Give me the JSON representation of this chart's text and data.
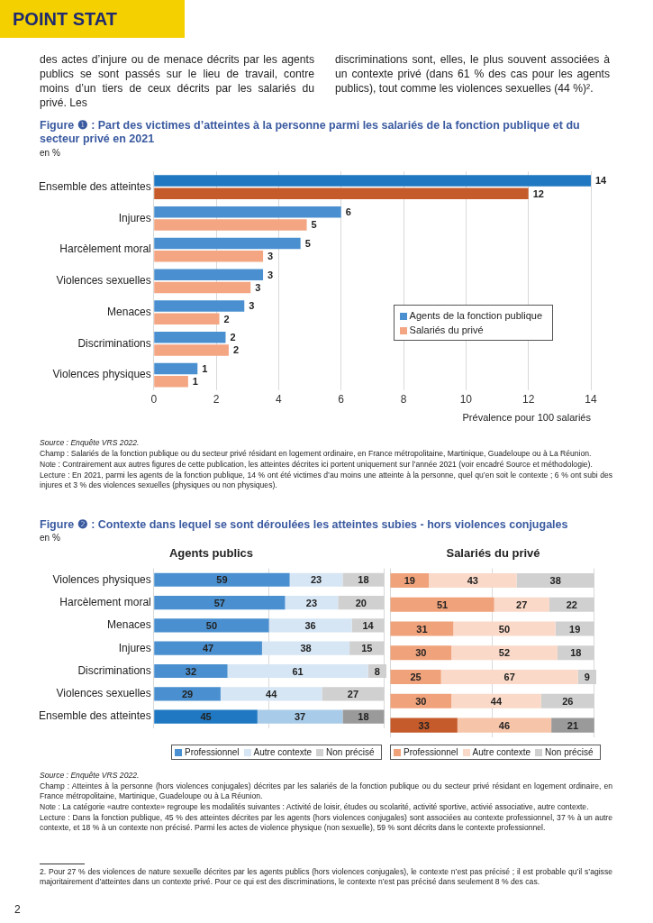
{
  "chart_data": [
    {
      "type": "bar",
      "orientation": "horizontal",
      "title": "Figure ❶ : Part des victimes d’atteintes à la personne parmi les salariés de la fonction publique et du secteur privé en 2021",
      "subtitle": "en %",
      "xlabel": "Prévalence pour 100 salariés",
      "categories": [
        "Ensemble des atteintes",
        "Injures",
        "Harcèlement moral",
        "Violences sexuelles",
        "Menaces",
        "Discriminations",
        "Violences physiques"
      ],
      "series": [
        {
          "name": "Agents de la fonction publique",
          "color": "#4a90d0",
          "colors": [
            "#1f78c1",
            "#4a90d0",
            "#4a90d0",
            "#4a90d0",
            "#4a90d0",
            "#4a90d0",
            "#4a90d0"
          ],
          "values": [
            14.0,
            6.0,
            4.7,
            3.5,
            2.9,
            2.3,
            1.4
          ],
          "value_labels": [
            "14",
            "6",
            "5",
            "3",
            "3",
            "2",
            "1"
          ]
        },
        {
          "name": "Salariés du privé",
          "color": "#f4a582",
          "colors": [
            "#c55a2a",
            "#f4a582",
            "#f4a582",
            "#f4a582",
            "#f4a582",
            "#f4a582",
            "#f4a582"
          ],
          "values": [
            12.0,
            4.9,
            3.5,
            3.1,
            2.1,
            2.4,
            1.1
          ],
          "value_labels": [
            "12",
            "5",
            "3",
            "3",
            "2",
            "2",
            "1"
          ]
        }
      ],
      "xlim": [
        0,
        14
      ],
      "xticks": [
        0,
        2,
        4,
        6,
        8,
        10,
        12,
        14
      ],
      "grid": "x",
      "legend": "bottom right",
      "annotations": [
        "POINT STAT",
        "des actes d’injure ou de menace décrits par les agents publics se sont passés sur le lieu de travail, contre moins d’un tiers de ceux décrits par les salariés du privé. Les",
        "discriminations sont, elles, le plus souvent associées à un contexte privé (dans 61 % des cas pour les agents publics), tout comme les violences sexuelles (44 %)².",
        "Source : Enquête VRS 2022.",
        "Champ : Salariés de la fonction publique ou du secteur privé résidant en logement ordinaire, en France métropolitaine, Martinique, Guadeloupe ou à La Réunion.",
        "Note : Contrairement aux autres figures de cette publication, les atteintes décrites ici portent uniquement sur l’année 2021 (voir encadré Source et méthodologie).",
        "Lecture : En 2021, parmi les agents de la fonction publique, 14 % ont été victimes d’au moins une atteinte à la personne, quel qu’en soit le contexte ; 6 % ont subi des injures et 3 % des violences sexuelles (physiques ou non physiques)."
      ]
    },
    {
      "type": "bar",
      "orientation": "horizontal",
      "stacked": true,
      "title": "Agents publics",
      "categories": [
        "Violences physiques",
        "Harcèlement moral",
        "Menaces",
        "Injures",
        "Discriminations",
        "Violences sexuelles",
        "Ensemble des atteintes"
      ],
      "series": [
        {
          "name": "Professionnel",
          "color": "#4a90d0",
          "colors": [
            "#4a90d0",
            "#4a90d0",
            "#4a90d0",
            "#4a90d0",
            "#4a90d0",
            "#4a90d0",
            "#1f78c1"
          ],
          "values": [
            59,
            57,
            50,
            47,
            32,
            29,
            45
          ]
        },
        {
          "name": "Autre contexte",
          "color": "#d6e6f5",
          "colors": [
            "#d6e6f5",
            "#d6e6f5",
            "#d6e6f5",
            "#d6e6f5",
            "#d6e6f5",
            "#d6e6f5",
            "#a8cbe9"
          ],
          "values": [
            23,
            23,
            36,
            38,
            61,
            44,
            37
          ]
        },
        {
          "name": "Non précisé",
          "color": "#d0d0d0",
          "colors": [
            "#d0d0d0",
            "#d0d0d0",
            "#d0d0d0",
            "#d0d0d0",
            "#d0d0d0",
            "#d0d0d0",
            "#9a9a9a"
          ],
          "values": [
            18,
            20,
            14,
            15,
            8,
            27,
            18
          ]
        }
      ],
      "xlim": [
        0,
        101
      ],
      "xticks": [
        {
          "value": 0,
          "label": null
        },
        {
          "value": 50,
          "label": null
        },
        {
          "value": 100,
          "label": null
        }
      ],
      "grid": "x",
      "tick_labels": "y",
      "data_labels": true,
      "legend": "bottom",
      "annotations": [
        "Figure ❷ : Contexte dans lequel se sont déroulées les atteintes subies - hors violences conjugales",
        "en %",
        "Source : Enquête VRS 2022.",
        "Champ : Atteintes à la personne (hors violences conjugales) décrites par les salariés de la fonction publique ou du secteur privé résidant en logement ordinaire, en France métropolitaine, Martinique, Guadeloupe ou à La Réunion.",
        "Note : La catégorie «autre contexte» regroupe les modalités suivantes : Activité de loisir, études ou scolarité, activité sportive, activié associative, autre contexte.",
        "Lecture : Dans la fonction publique, 45 % des atteintes décrites par les agents (hors violences conjugales) sont associées au contexte professionnel, 37 % à un autre contexte, et 18 % à un contexte non précisé. Parmi les actes de violence physique (non sexuelle), 59 % sont décrits dans le contexte professionnel.",
        "2. Pour 27 % des violences de nature sexuelle décrites par les agents publics (hors violences conjugales), le contexte n’est pas précisé ; il est probable qu’il s’agisse majoritairement d’atteintes dans un contexte privé. Pour ce qui est des discriminations, le contexte n’est pas précisé dans seulement 8 % des cas.",
        "2"
      ]
    },
    {
      "type": "bar",
      "orientation": "horizontal",
      "stacked": true,
      "title": "Salariés du privé",
      "categories": [
        null,
        null,
        null,
        null,
        null,
        null,
        null
      ],
      "series": [
        {
          "name": "Professionnel",
          "color": "#f0a27b",
          "colors": [
            "#f0a27b",
            "#f0a27b",
            "#f0a27b",
            "#f0a27b",
            "#f0a27b",
            "#f0a27b",
            "#c55a2a"
          ],
          "values": [
            19,
            51,
            31,
            30,
            25,
            30,
            33
          ]
        },
        {
          "name": "Autre contexte",
          "color": "#fad9c8",
          "colors": [
            "#fad9c8",
            "#fad9c8",
            "#fad9c8",
            "#fad9c8",
            "#fad9c8",
            "#fad9c8",
            "#f6c4a9"
          ],
          "values": [
            43,
            27,
            50,
            52,
            67,
            44,
            46
          ]
        },
        {
          "name": "Non précisé",
          "color": "#d0d0d0",
          "colors": [
            "#d0d0d0",
            "#d0d0d0",
            "#d0d0d0",
            "#d0d0d0",
            "#d0d0d0",
            "#d0d0d0",
            "#9a9a9a"
          ],
          "values": [
            38,
            22,
            19,
            18,
            9,
            26,
            21
          ]
        }
      ],
      "xlim": [
        0,
        101
      ],
      "xticks": [
        {
          "value": 0,
          "label": null
        },
        {
          "value": 50,
          "label": null
        },
        {
          "value": 100,
          "label": null
        }
      ],
      "grid": "x",
      "tick_labels": false,
      "data_labels": true,
      "legend": "bottom"
    }
  ]
}
